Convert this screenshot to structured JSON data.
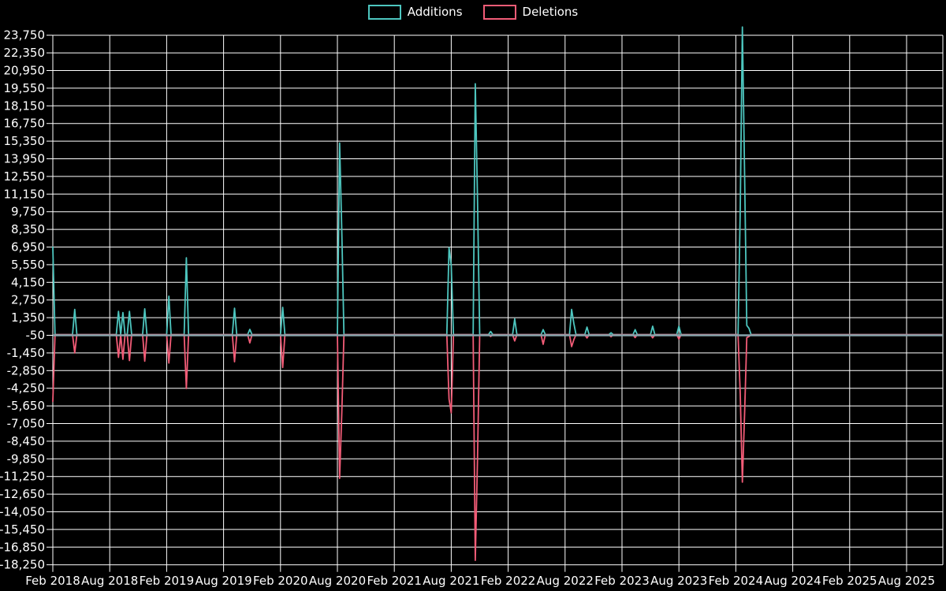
{
  "page": {
    "background_color": "#000000",
    "text_color": "#ffffff"
  },
  "legend": [
    {
      "label": "Additions",
      "color": "#4DC6BF"
    },
    {
      "label": "Deletions",
      "color": "#F25C77"
    }
  ],
  "chart_data": {
    "type": "line",
    "title": "",
    "xlabel": "",
    "ylabel": "",
    "series_names": [
      "Additions",
      "Deletions"
    ],
    "colors": {
      "additions": "#4DC6BF",
      "deletions": "#F25C77",
      "baseline": "#86A4AC",
      "grid": "#FFFFFF",
      "text": "#FFFFFF",
      "background": "#000000"
    },
    "x_axis": {
      "tick_labels": [
        "Feb 2018",
        "Aug 2018",
        "Feb 2019",
        "Aug 2019",
        "Feb 2020",
        "Aug 2020",
        "Feb 2021",
        "Aug 2021",
        "Feb 2022",
        "Aug 2022",
        "Feb 2023",
        "Aug 2023",
        "Feb 2024",
        "Aug 2024",
        "Feb 2025",
        "Aug 2025"
      ],
      "weeks_per_tick": 26,
      "week_zero_label": "Feb 2018",
      "total_weeks": 406
    },
    "y_axis": {
      "tick_max": 23750,
      "tick_min": -18250,
      "tick_step": 1400,
      "zero_baseline_value": -50
    },
    "grid": true,
    "legend_position": "top-center",
    "points_note": "weekly additions/deletions; weeks not listed are 0 for both series; week 0 = Feb 2018",
    "points": [
      {
        "week": 0,
        "additions": 6950,
        "deletions": -5300
      },
      {
        "week": 10,
        "additions": 2000,
        "deletions": -1450
      },
      {
        "week": 30,
        "additions": 1850,
        "deletions": -1800
      },
      {
        "week": 32,
        "additions": 1750,
        "deletions": -1950
      },
      {
        "week": 35,
        "additions": 1850,
        "deletions": -2050
      },
      {
        "week": 42,
        "additions": 2050,
        "deletions": -2100
      },
      {
        "week": 53,
        "additions": 3050,
        "deletions": -2250
      },
      {
        "week": 61,
        "additions": 6100,
        "deletions": -4270
      },
      {
        "week": 83,
        "additions": 2100,
        "deletions": -2150
      },
      {
        "week": 90,
        "additions": 420,
        "deletions": -650
      },
      {
        "week": 105,
        "additions": 2170,
        "deletions": -2600
      },
      {
        "week": 131,
        "additions": 15200,
        "deletions": -11400
      },
      {
        "week": 132,
        "additions": 8100,
        "deletions": -6150
      },
      {
        "week": 181,
        "additions": 6900,
        "deletions": -5100
      },
      {
        "week": 182,
        "additions": 5500,
        "deletions": -6200
      },
      {
        "week": 193,
        "additions": 19900,
        "deletions": -17900
      },
      {
        "week": 194,
        "additions": 10800,
        "deletions": -9900
      },
      {
        "week": 200,
        "additions": 250,
        "deletions": -150
      },
      {
        "week": 211,
        "additions": 1250,
        "deletions": -500
      },
      {
        "week": 224,
        "additions": 400,
        "deletions": -760
      },
      {
        "week": 237,
        "additions": 2000,
        "deletions": -950
      },
      {
        "week": 238,
        "additions": 900,
        "deletions": -400
      },
      {
        "week": 244,
        "additions": 600,
        "deletions": -260
      },
      {
        "week": 255,
        "additions": 150,
        "deletions": -170
      },
      {
        "week": 266,
        "additions": 400,
        "deletions": -230
      },
      {
        "week": 274,
        "additions": 670,
        "deletions": -250
      },
      {
        "week": 286,
        "additions": 670,
        "deletions": -350
      },
      {
        "week": 314,
        "additions": 9900,
        "deletions": -4700
      },
      {
        "week": 315,
        "additions": 24400,
        "deletions": -11700
      },
      {
        "week": 316,
        "additions": 12800,
        "deletions": -6300
      },
      {
        "week": 317,
        "additions": 730,
        "deletions": -230
      },
      {
        "week": 318,
        "additions": 500,
        "deletions": -150
      }
    ]
  }
}
